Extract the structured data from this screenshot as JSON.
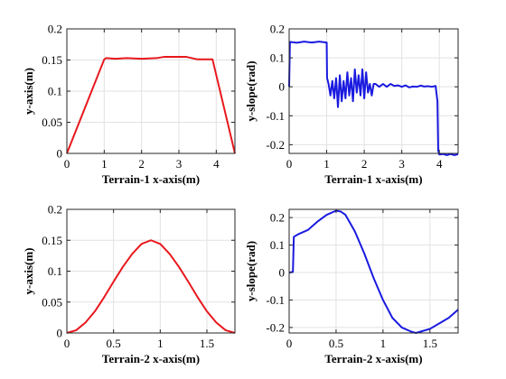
{
  "chart_data": [
    {
      "type": "line",
      "xlabel": "Terrain-1 x-axis(m)",
      "ylabel": "y-axis(m)",
      "xlim": [
        0,
        4.5
      ],
      "ylim": [
        0,
        0.2
      ],
      "xticks": [
        0,
        1,
        2,
        3,
        4
      ],
      "yticks": [
        0,
        0.05,
        0.1,
        0.15,
        0.2
      ],
      "xtick_labels": [
        "0",
        "1",
        "2",
        "3",
        "4"
      ],
      "ytick_labels": [
        "0",
        "0.05",
        "0.1",
        "0.15",
        "0.2"
      ],
      "grid": true,
      "series": [
        {
          "color": "#e8181d",
          "x": [
            0,
            1.0,
            1.05,
            1.3,
            1.6,
            2.0,
            2.4,
            2.6,
            2.9,
            3.2,
            3.5,
            3.6,
            3.9,
            4.5
          ],
          "y": [
            0,
            0.151,
            0.153,
            0.152,
            0.153,
            0.152,
            0.153,
            0.155,
            0.155,
            0.155,
            0.151,
            0.151,
            0.151,
            0
          ]
        }
      ]
    },
    {
      "type": "line",
      "xlabel": "Terrain-1 x-axis(m)",
      "ylabel": "y-slope(rad)",
      "xlim": [
        0,
        4.5
      ],
      "ylim": [
        -0.23,
        0.2
      ],
      "xticks": [
        0,
        1,
        2,
        3,
        4
      ],
      "yticks": [
        -0.2,
        -0.1,
        0,
        0.1,
        0.2
      ],
      "xtick_labels": [
        "0",
        "1",
        "2",
        "3",
        "4"
      ],
      "ytick_labels": [
        "-0.2",
        "-0.1",
        "0",
        "0.1",
        "0.2"
      ],
      "grid": true,
      "series": [
        {
          "color": "#1a1ae0",
          "x": [
            0,
            0.02,
            0.03,
            0.2,
            0.4,
            0.6,
            0.8,
            1.0,
            1.01,
            1.05,
            1.1,
            1.15,
            1.2,
            1.25,
            1.3,
            1.35,
            1.4,
            1.45,
            1.5,
            1.55,
            1.6,
            1.65,
            1.7,
            1.75,
            1.8,
            1.85,
            1.9,
            1.95,
            2.0,
            2.05,
            2.1,
            2.15,
            2.2,
            2.25,
            2.3,
            2.4,
            2.5,
            2.6,
            2.7,
            2.8,
            2.9,
            3.0,
            3.1,
            3.2,
            3.3,
            3.4,
            3.5,
            3.6,
            3.7,
            3.8,
            3.9,
            3.95,
            3.97,
            4.0,
            4.1,
            4.2,
            4.3,
            4.4,
            4.5
          ],
          "y": [
            0,
            0.15,
            0.155,
            0.152,
            0.156,
            0.153,
            0.156,
            0.153,
            0.03,
            0.01,
            -0.03,
            0.02,
            -0.04,
            0.03,
            -0.07,
            0.04,
            -0.05,
            0.02,
            -0.04,
            0.05,
            -0.03,
            0.03,
            -0.05,
            0.06,
            -0.02,
            0.04,
            -0.03,
            0.06,
            -0.04,
            0.05,
            -0.02,
            0.01,
            -0.03,
            0.01,
            0.01,
            0.0,
            0.01,
            0.0,
            0.01,
            0.003,
            0.005,
            0.0,
            0.005,
            -0.002,
            0.001,
            0.0,
            0.004,
            0.001,
            0.002,
            0.0,
            0.003,
            -0.05,
            -0.22,
            -0.234,
            -0.232,
            -0.236,
            -0.232,
            -0.236,
            -0.233
          ]
        }
      ]
    },
    {
      "type": "line",
      "xlabel": "Terrain-2 x-axis(m)",
      "ylabel": "y-axis(m)",
      "xlim": [
        0,
        1.8
      ],
      "ylim": [
        0,
        0.2
      ],
      "xticks": [
        0,
        0.5,
        1,
        1.5
      ],
      "yticks": [
        0,
        0.05,
        0.1,
        0.15,
        0.2
      ],
      "xtick_labels": [
        "0",
        "0.5",
        "1",
        "1.5"
      ],
      "ytick_labels": [
        "0",
        "0.05",
        "0.1",
        "0.15",
        "0.2"
      ],
      "grid": true,
      "series": [
        {
          "color": "#e8181d",
          "x": [
            0,
            0.1,
            0.2,
            0.3,
            0.4,
            0.5,
            0.6,
            0.7,
            0.8,
            0.9,
            1.0,
            1.1,
            1.2,
            1.3,
            1.4,
            1.5,
            1.6,
            1.7,
            1.8
          ],
          "y": [
            0,
            0.0045,
            0.017,
            0.035,
            0.058,
            0.083,
            0.107,
            0.128,
            0.144,
            0.15,
            0.144,
            0.128,
            0.107,
            0.083,
            0.058,
            0.035,
            0.017,
            0.0045,
            0
          ]
        }
      ]
    },
    {
      "type": "line",
      "xlabel": "Terrain-2 x-axis(m)",
      "ylabel": "y-slope(rad)",
      "xlim": [
        0,
        1.8
      ],
      "ylim": [
        -0.22,
        0.23
      ],
      "xticks": [
        0,
        0.5,
        1,
        1.5
      ],
      "yticks": [
        -0.2,
        -0.1,
        0,
        0.1,
        0.2
      ],
      "xtick_labels": [
        "0",
        "0.5",
        "1",
        "1.5"
      ],
      "ytick_labels": [
        "-0.2",
        "-0.1",
        "0",
        "0.1",
        "0.2"
      ],
      "grid": true,
      "series": [
        {
          "color": "#1a1ae0",
          "x": [
            0,
            0.04,
            0.05,
            0.1,
            0.2,
            0.3,
            0.4,
            0.5,
            0.55,
            0.6,
            0.7,
            0.8,
            0.9,
            1.0,
            1.1,
            1.2,
            1.3,
            1.35,
            1.4,
            1.5,
            1.6,
            1.7,
            1.8
          ],
          "y": [
            0,
            0.002,
            0.13,
            0.14,
            0.155,
            0.185,
            0.21,
            0.225,
            0.222,
            0.21,
            0.15,
            0.07,
            -0.02,
            -0.1,
            -0.165,
            -0.2,
            -0.215,
            -0.22,
            -0.215,
            -0.205,
            -0.185,
            -0.165,
            -0.135
          ]
        }
      ]
    }
  ]
}
